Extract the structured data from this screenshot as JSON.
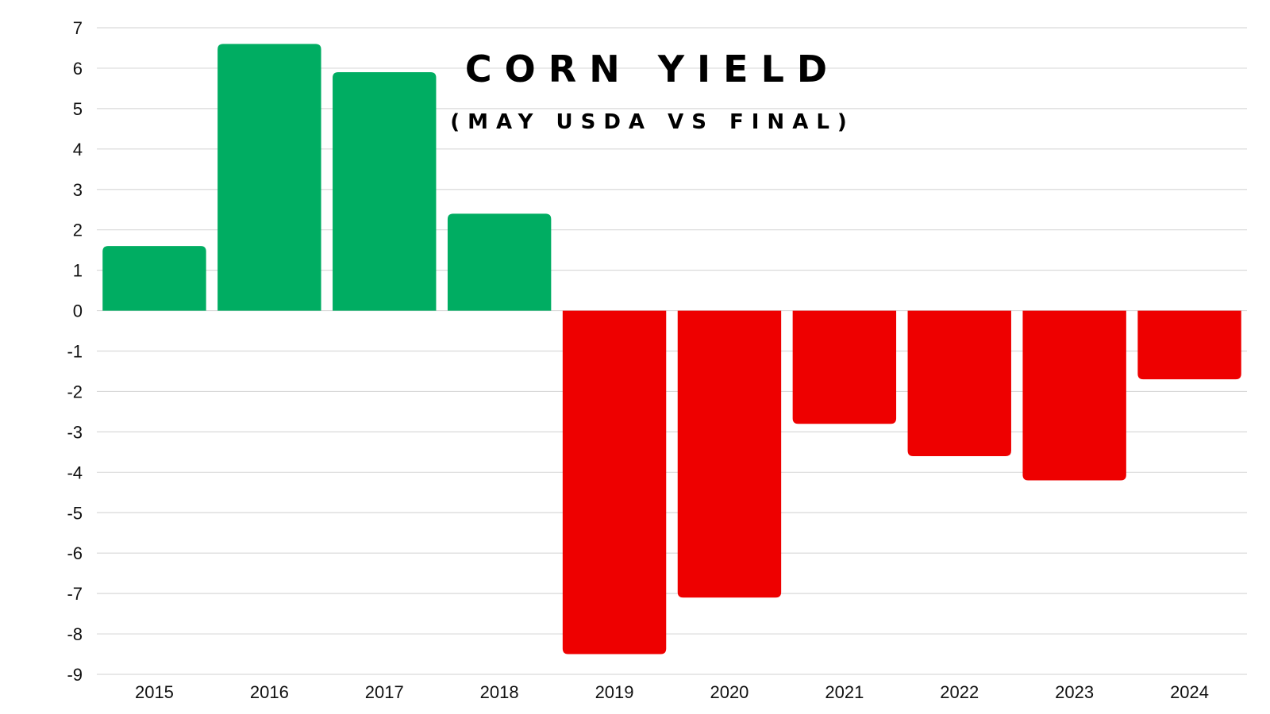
{
  "chart_data": {
    "type": "bar",
    "title": "CORN YIELD",
    "subtitle": "(MAY USDA VS FINAL)",
    "xlabel": "",
    "ylabel": "",
    "categories": [
      "2015",
      "2016",
      "2017",
      "2018",
      "2019",
      "2020",
      "2021",
      "2022",
      "2023",
      "2024"
    ],
    "values": [
      1.6,
      6.6,
      5.9,
      2.4,
      -8.5,
      -7.1,
      -2.8,
      -3.6,
      -4.2,
      -1.7
    ],
    "ylim": [
      -9,
      7
    ],
    "yticks": [
      "7",
      "6",
      "5",
      "4",
      "3",
      "2",
      "1",
      "0",
      "-1",
      "-2",
      "-3",
      "-4",
      "-5",
      "-6",
      "-7",
      "-8",
      "-9"
    ],
    "grid": true,
    "legend": "none",
    "colors": {
      "positive": "#00ad62",
      "negative": "#ee0000",
      "grid": "#d9d9d9"
    }
  }
}
